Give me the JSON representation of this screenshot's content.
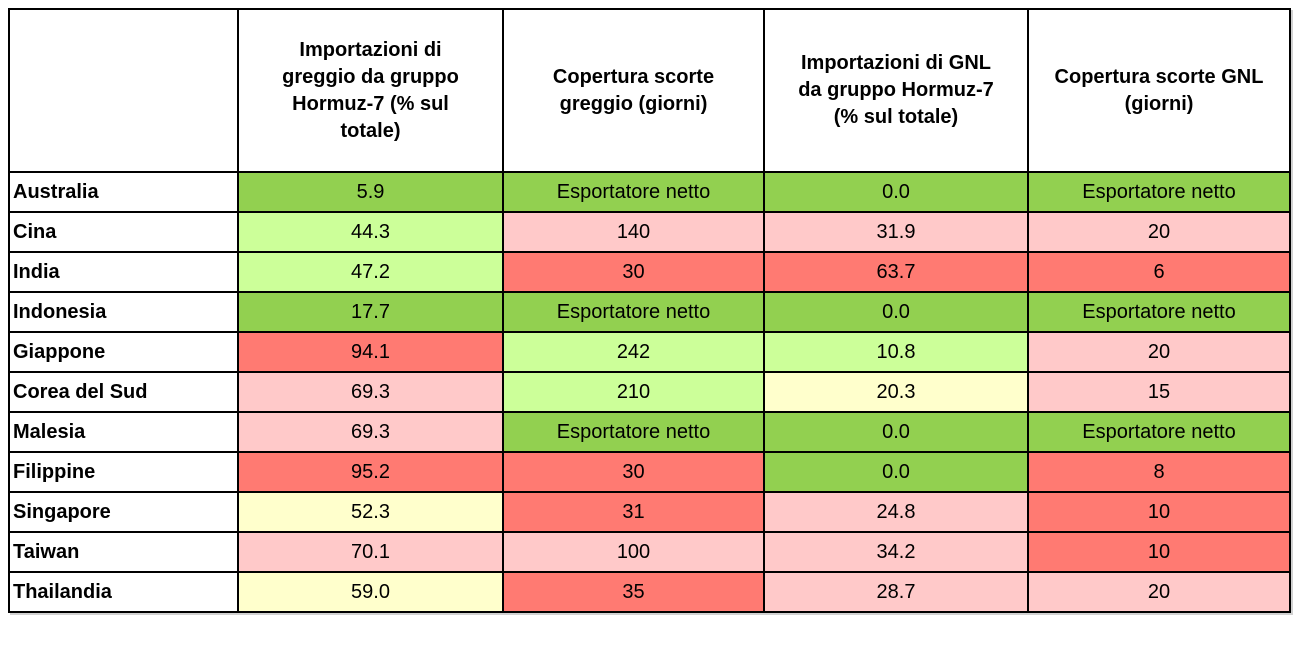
{
  "palette": {
    "green": "#92D050",
    "lightgreen": "#CCFF99",
    "yellow": "#FFFFCC",
    "pink": "#FFC9C9",
    "red": "#FF7A72"
  },
  "chart_data": {
    "type": "table",
    "columns": [
      "",
      "Importazioni di greggio da gruppo Hormuz-7 (% sul totale)",
      "Copertura scorte greggio (giorni)",
      "Importazioni di GNL da gruppo Hormuz-7 (% sul totale)",
      "Copertura scorte GNL (giorni)"
    ],
    "rows": [
      {
        "country": "Australia",
        "cells": [
          {
            "value": "5.9",
            "color": "green"
          },
          {
            "value": "Esportatore netto",
            "color": "green"
          },
          {
            "value": "0.0",
            "color": "green"
          },
          {
            "value": "Esportatore netto",
            "color": "green"
          }
        ]
      },
      {
        "country": "Cina",
        "cells": [
          {
            "value": "44.3",
            "color": "lightgreen"
          },
          {
            "value": "140",
            "color": "pink"
          },
          {
            "value": "31.9",
            "color": "pink"
          },
          {
            "value": "20",
            "color": "pink"
          }
        ]
      },
      {
        "country": "India",
        "cells": [
          {
            "value": "47.2",
            "color": "lightgreen"
          },
          {
            "value": "30",
            "color": "red"
          },
          {
            "value": "63.7",
            "color": "red"
          },
          {
            "value": "6",
            "color": "red"
          }
        ]
      },
      {
        "country": "Indonesia",
        "cells": [
          {
            "value": "17.7",
            "color": "green"
          },
          {
            "value": "Esportatore netto",
            "color": "green"
          },
          {
            "value": "0.0",
            "color": "green"
          },
          {
            "value": "Esportatore netto",
            "color": "green"
          }
        ]
      },
      {
        "country": "Giappone",
        "cells": [
          {
            "value": "94.1",
            "color": "red"
          },
          {
            "value": "242",
            "color": "lightgreen"
          },
          {
            "value": "10.8",
            "color": "lightgreen"
          },
          {
            "value": "20",
            "color": "pink"
          }
        ]
      },
      {
        "country": "Corea del Sud",
        "cells": [
          {
            "value": "69.3",
            "color": "pink"
          },
          {
            "value": "210",
            "color": "lightgreen"
          },
          {
            "value": "20.3",
            "color": "yellow"
          },
          {
            "value": "15",
            "color": "pink"
          }
        ]
      },
      {
        "country": "Malesia",
        "cells": [
          {
            "value": "69.3",
            "color": "pink"
          },
          {
            "value": "Esportatore netto",
            "color": "green"
          },
          {
            "value": "0.0",
            "color": "green"
          },
          {
            "value": "Esportatore netto",
            "color": "green"
          }
        ]
      },
      {
        "country": "Filippine",
        "cells": [
          {
            "value": "95.2",
            "color": "red"
          },
          {
            "value": "30",
            "color": "red"
          },
          {
            "value": "0.0",
            "color": "green"
          },
          {
            "value": "8",
            "color": "red"
          }
        ]
      },
      {
        "country": "Singapore",
        "cells": [
          {
            "value": "52.3",
            "color": "yellow"
          },
          {
            "value": "31",
            "color": "red"
          },
          {
            "value": "24.8",
            "color": "pink"
          },
          {
            "value": "10",
            "color": "red"
          }
        ]
      },
      {
        "country": "Taiwan",
        "cells": [
          {
            "value": "70.1",
            "color": "pink"
          },
          {
            "value": "100",
            "color": "pink"
          },
          {
            "value": "34.2",
            "color": "pink"
          },
          {
            "value": "10",
            "color": "red"
          }
        ]
      },
      {
        "country": "Thailandia",
        "cells": [
          {
            "value": "59.0",
            "color": "yellow"
          },
          {
            "value": "35",
            "color": "red"
          },
          {
            "value": "28.7",
            "color": "pink"
          },
          {
            "value": "20",
            "color": "pink"
          }
        ]
      }
    ]
  }
}
